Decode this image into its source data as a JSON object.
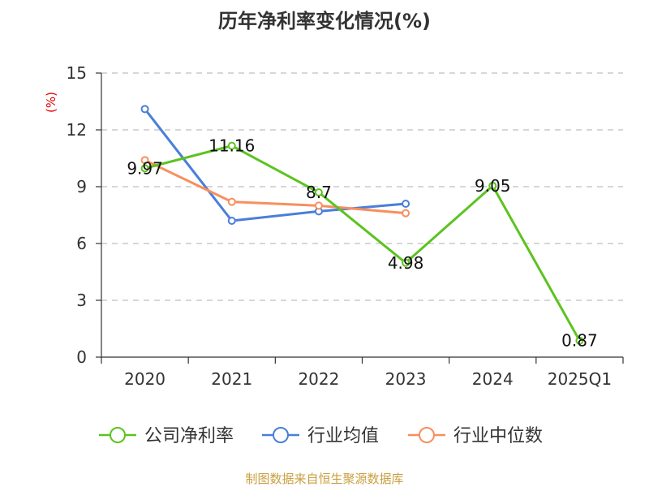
{
  "chart_data": {
    "type": "line",
    "title": "历年净利率变化情况(%)",
    "ylabel": "(%)",
    "ylim": [
      0,
      15
    ],
    "yticks": [
      0,
      3,
      6,
      9,
      12,
      15
    ],
    "categories": [
      "2020",
      "2021",
      "2022",
      "2023",
      "2024",
      "2025Q1"
    ],
    "grid": true,
    "legend_position": "bottom",
    "series": [
      {
        "name": "公司净利率",
        "color": "#5cc31f",
        "values": [
          9.97,
          11.16,
          8.7,
          4.98,
          9.05,
          0.87
        ],
        "labels": [
          "9.97",
          "11.16",
          "8.7",
          "4.98",
          "9.05",
          "0.87"
        ]
      },
      {
        "name": "行业均值",
        "color": "#4a7fd9",
        "values": [
          13.1,
          7.2,
          7.7,
          8.1,
          null,
          null
        ]
      },
      {
        "name": "行业中位数",
        "color": "#f78f5e",
        "values": [
          10.4,
          8.2,
          8.0,
          7.6,
          null,
          null
        ]
      }
    ]
  },
  "unit_color": "#e00000",
  "source": {
    "text": "制图数据来自恒生聚源数据库",
    "color": "#c8a040"
  }
}
